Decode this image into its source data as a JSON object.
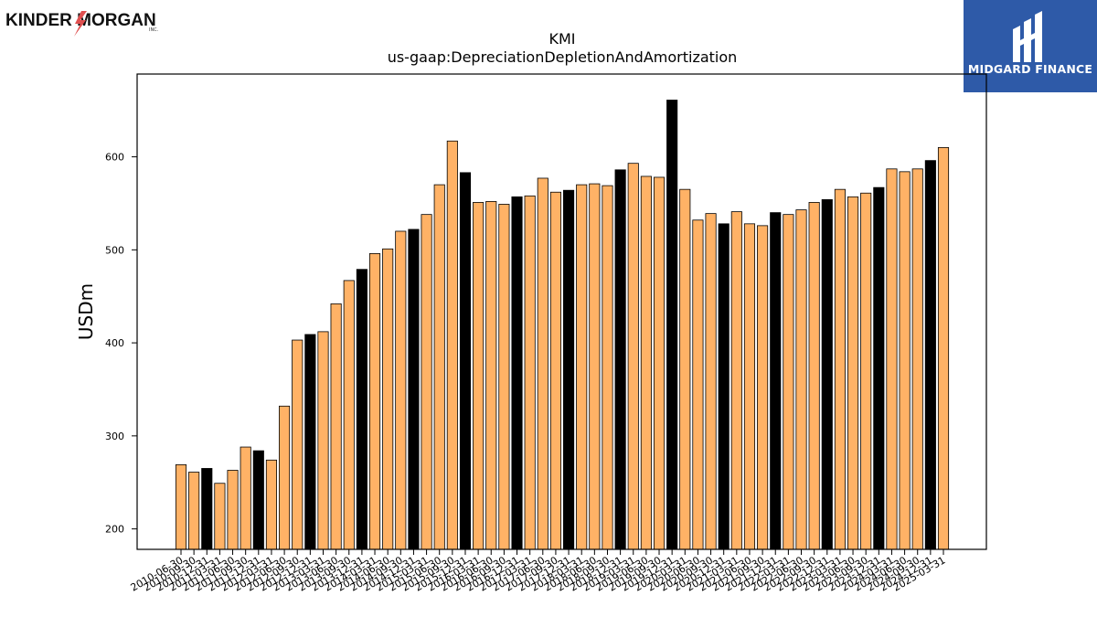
{
  "header": {
    "company_logo_text": "KINDER MORGAN",
    "company_logo_suffix": "INC.",
    "brand_logo_text": "MIDGARD FINANCE"
  },
  "colors": {
    "bar_default": "#ffb266",
    "bar_highlight": "#000000",
    "bar_edge": "#000000",
    "brand_blue": "#2e5aa8"
  },
  "chart_data": {
    "type": "bar",
    "title": "KMI",
    "subtitle": "us-gaap:DepreciationDepletionAndAmortization",
    "ylabel": "USDm",
    "xlabel": "",
    "ylim": [
      178,
      689
    ],
    "yticks": [
      200,
      300,
      400,
      500,
      600
    ],
    "grid": false,
    "categories": [
      "2010-06-30",
      "2010-09-30",
      "2010-12-31",
      "2011-03-31",
      "2011-06-30",
      "2011-09-30",
      "2011-12-31",
      "2012-03-31",
      "2012-06-30",
      "2012-09-30",
      "2012-12-31",
      "2013-03-31",
      "2013-06-30",
      "2013-09-30",
      "2013-12-31",
      "2014-03-31",
      "2014-06-30",
      "2014-09-30",
      "2014-12-31",
      "2015-03-31",
      "2015-06-30",
      "2015-09-30",
      "2015-12-31",
      "2016-03-31",
      "2016-06-30",
      "2016-09-30",
      "2016-12-31",
      "2017-03-31",
      "2017-06-30",
      "2017-09-30",
      "2017-12-31",
      "2018-03-31",
      "2018-06-30",
      "2018-09-30",
      "2018-12-31",
      "2019-03-31",
      "2019-06-30",
      "2019-09-30",
      "2019-12-31",
      "2020-03-31",
      "2020-06-30",
      "2020-09-30",
      "2020-12-31",
      "2021-03-31",
      "2021-06-30",
      "2021-09-30",
      "2021-12-31",
      "2022-03-31",
      "2022-06-30",
      "2022-09-30",
      "2022-12-31",
      "2023-03-31",
      "2023-06-30",
      "2023-09-30",
      "2023-12-31",
      "2024-03-31",
      "2024-06-30",
      "2024-09-30",
      "2024-12-31",
      "2025-03-31"
    ],
    "values": [
      269,
      261,
      265,
      249,
      263,
      288,
      284,
      274,
      332,
      403,
      409,
      412,
      442,
      467,
      479,
      496,
      501,
      520,
      522,
      538,
      570,
      617,
      583,
      551,
      552,
      549,
      557,
      558,
      577,
      562,
      564,
      570,
      571,
      569,
      586,
      593,
      579,
      578,
      661,
      565,
      532,
      539,
      528,
      541,
      528,
      526,
      540,
      538,
      543,
      551,
      554,
      565,
      557,
      561,
      567,
      587,
      584,
      587,
      596,
      610
    ],
    "highlight_indices": [
      2,
      6,
      10,
      14,
      18,
      22,
      26,
      30,
      34,
      38,
      42,
      46,
      50,
      54,
      58
    ]
  }
}
